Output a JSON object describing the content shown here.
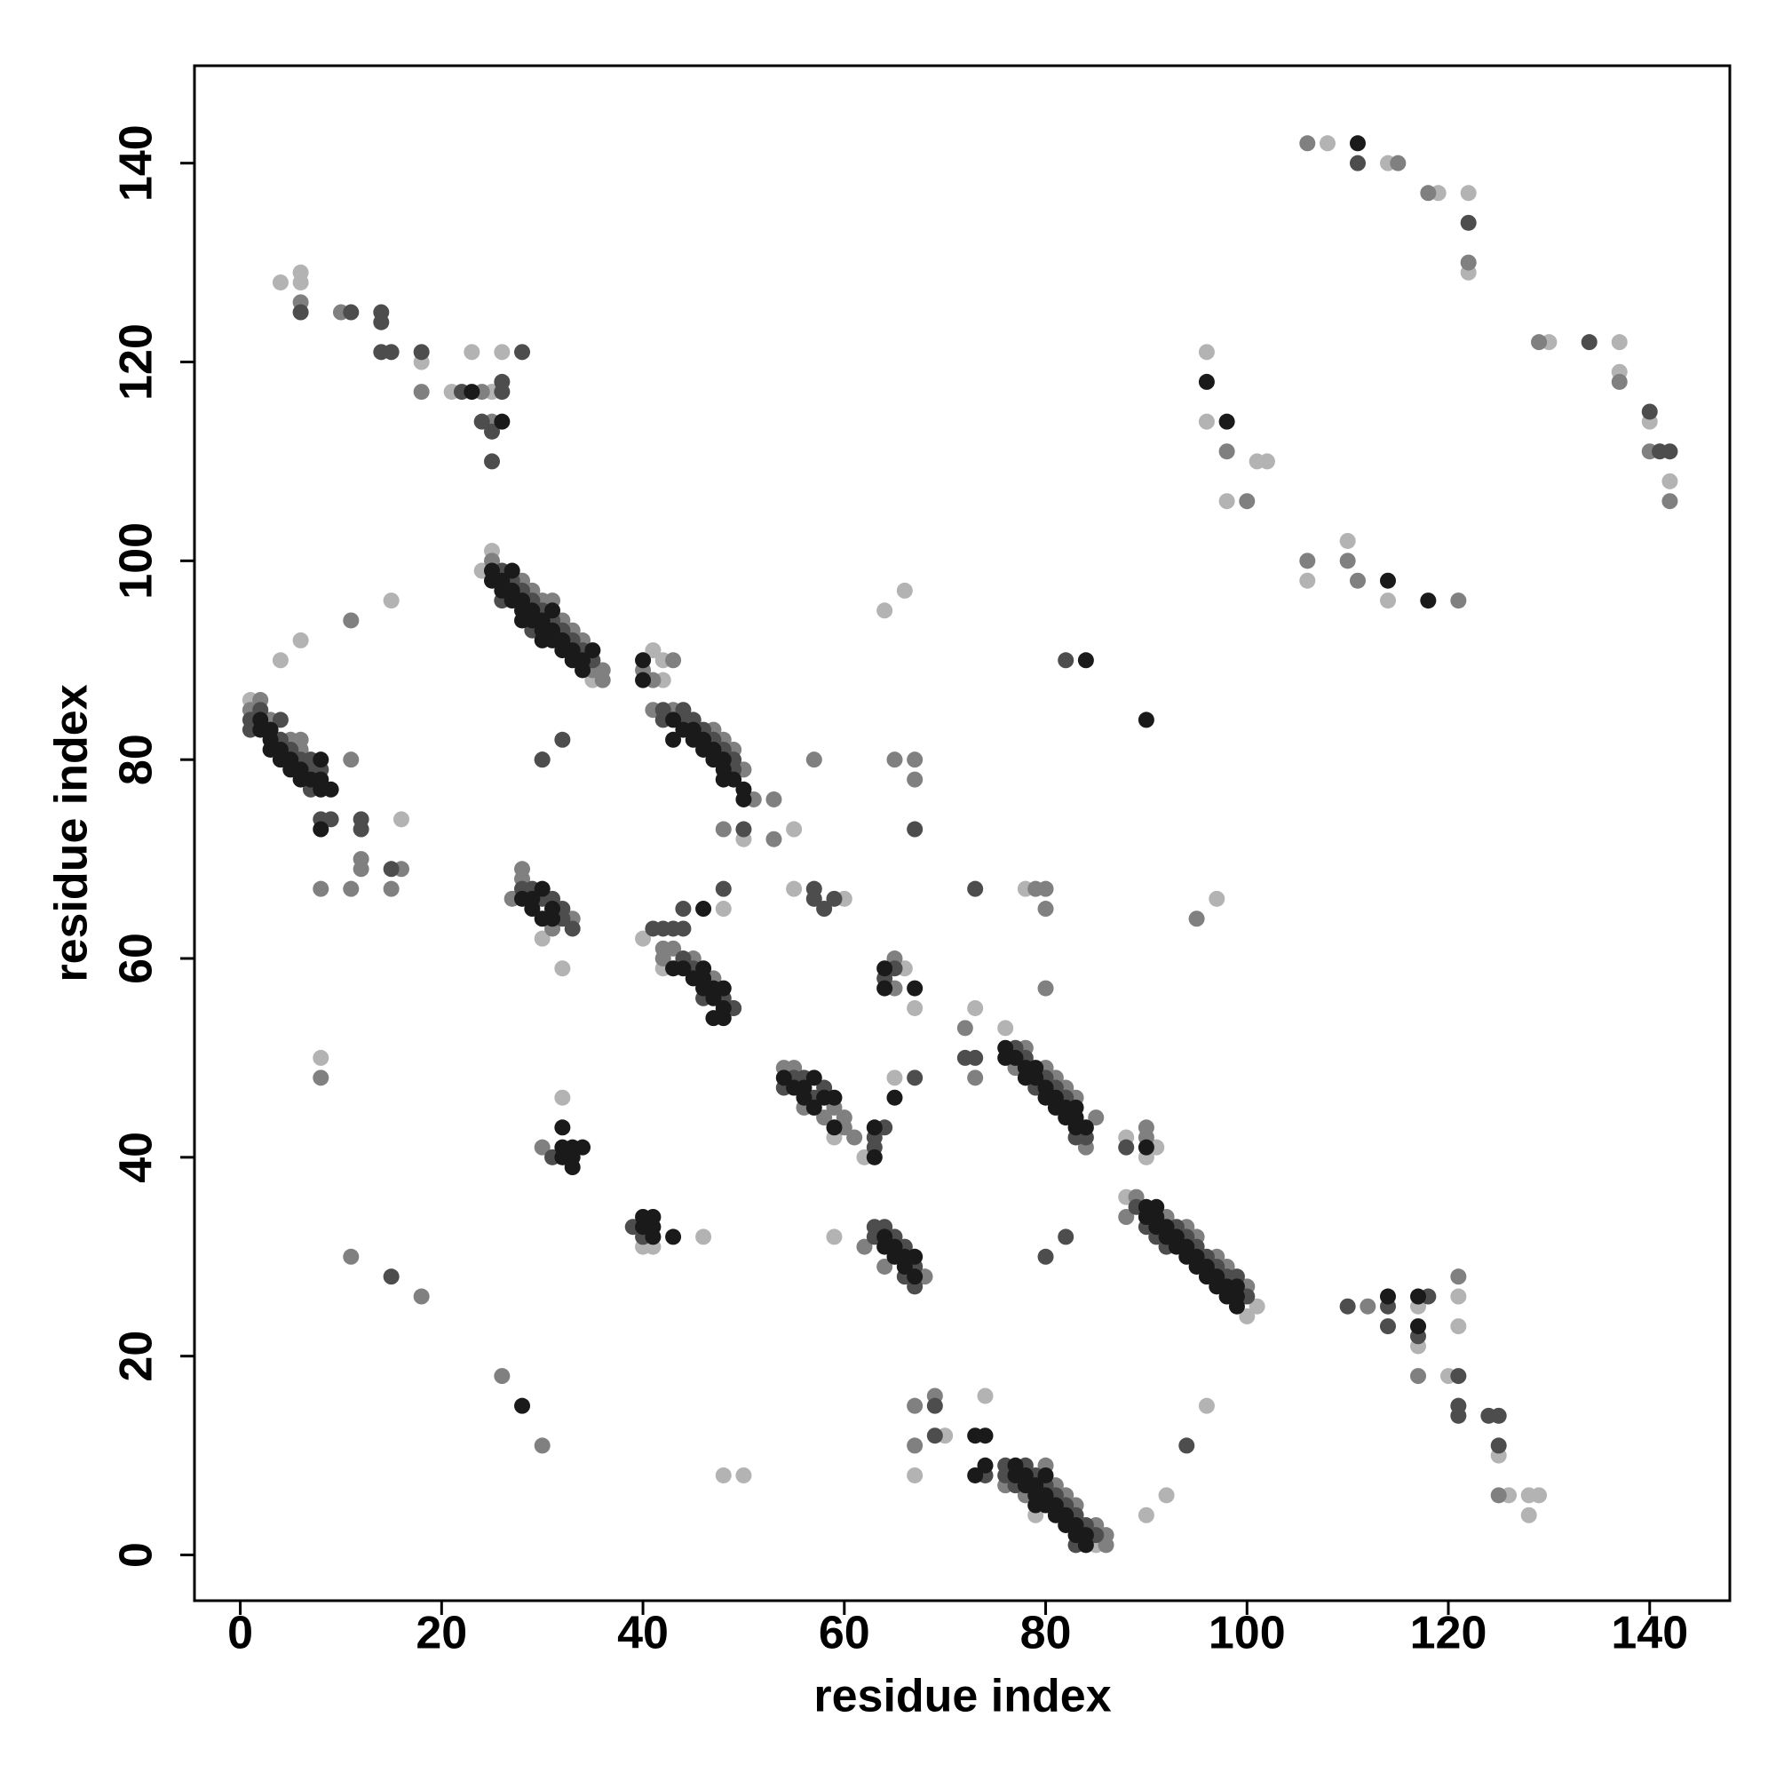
{
  "chart_data": {
    "type": "scatter",
    "xlabel": "residue index",
    "ylabel": "residue index",
    "xlim": [
      -4.55,
      147.96
    ],
    "ylim": [
      -4.6,
      149.8
    ],
    "xticks": [
      0,
      20,
      40,
      60,
      80,
      100,
      120,
      140
    ],
    "yticks": [
      0,
      20,
      40,
      60,
      80,
      100,
      120,
      140
    ],
    "series": [
      {
        "color": "#b3b3b3",
        "x": [
          1,
          4,
          6,
          4,
          8,
          16,
          15,
          4,
          6,
          6,
          18,
          21,
          23,
          25,
          26,
          25,
          24,
          35,
          40,
          41,
          42,
          42,
          40,
          42,
          48,
          55,
          55,
          60,
          50,
          46,
          59,
          48,
          50,
          32,
          32,
          30,
          41,
          40,
          59,
          62,
          65,
          66,
          67,
          66,
          64,
          67,
          70,
          74,
          73,
          76,
          78,
          90,
          91,
          88,
          88,
          100,
          101,
          90,
          92,
          96,
          97,
          85,
          79,
          96,
          96,
          98,
          101,
          102,
          106,
          110,
          108,
          114,
          114,
          119,
          122,
          122,
          130,
          137,
          137,
          140,
          142,
          117,
          117,
          120,
          121,
          121,
          125,
          126,
          128,
          129,
          128
        ],
        "values": [
          86,
          90,
          92,
          80,
          50,
          74,
          96,
          128,
          128,
          129,
          120,
          117,
          121,
          117,
          121,
          101,
          99,
          88,
          90,
          91,
          90,
          88,
          62,
          59,
          65,
          73,
          67,
          66,
          72,
          32,
          32,
          8,
          8,
          59,
          46,
          62,
          31,
          31,
          42,
          40,
          48,
          59,
          55,
          97,
          95,
          8,
          12,
          16,
          55,
          53,
          67,
          40,
          41,
          42,
          36,
          24,
          25,
          4,
          6,
          15,
          66,
          1,
          4,
          121,
          114,
          106,
          110,
          110,
          98,
          102,
          142,
          140,
          96,
          137,
          137,
          129,
          122,
          122,
          119,
          114,
          108,
          25,
          21,
          18,
          26,
          23,
          10,
          6,
          6,
          6,
          4
        ]
      },
      {
        "color": "#808080",
        "x": [
          2,
          1,
          3,
          5,
          6,
          6,
          11,
          8,
          11,
          12,
          12,
          15,
          16,
          8,
          11,
          25,
          28,
          29,
          30,
          31,
          32,
          33,
          34,
          35,
          36,
          36,
          30,
          40,
          41,
          43,
          41,
          43,
          47,
          48,
          49,
          50,
          51,
          53,
          48,
          57,
          65,
          67,
          67,
          53,
          27,
          28,
          28,
          31,
          33,
          30,
          42,
          42,
          43,
          45,
          47,
          49,
          54,
          55,
          56,
          58,
          59,
          60,
          60,
          61,
          65,
          65,
          64,
          68,
          62,
          78,
          77,
          80,
          81,
          82,
          83,
          85,
          84,
          79,
          80,
          80,
          80,
          73,
          72,
          88,
          90,
          90,
          92,
          94,
          95,
          97,
          98,
          100,
          89,
          76,
          78,
          80,
          81,
          82,
          83,
          85,
          86,
          86,
          67,
          67,
          69,
          6,
          10,
          18,
          24,
          25,
          98,
          100,
          106,
          111,
          110,
          121,
          106,
          115,
          118,
          122,
          129,
          137,
          140,
          142,
          121,
          117,
          112,
          125,
          26,
          18,
          30,
          11,
          95
        ],
        "values": [
          86,
          85,
          84,
          82,
          81,
          82,
          80,
          67,
          67,
          69,
          70,
          67,
          69,
          48,
          94,
          100,
          98,
          97,
          96,
          96,
          94,
          93,
          92,
          89,
          89,
          88,
          80,
          89,
          88,
          90,
          85,
          85,
          83,
          82,
          81,
          79,
          76,
          72,
          73,
          80,
          80,
          80,
          78,
          76,
          66,
          69,
          68,
          63,
          64,
          41,
          61,
          60,
          61,
          60,
          58,
          55,
          49,
          49,
          45,
          44,
          45,
          44,
          43,
          42,
          60,
          57,
          29,
          28,
          31,
          51,
          49,
          49,
          48,
          47,
          46,
          44,
          41,
          67,
          67,
          65,
          57,
          48,
          53,
          34,
          42,
          43,
          34,
          33,
          32,
          30,
          29,
          27,
          36,
          7,
          6,
          9,
          7,
          6,
          5,
          3,
          2,
          1,
          15,
          11,
          16,
          126,
          125,
          117,
          117,
          114,
          111,
          106,
          100,
          98,
          100,
          96,
          142,
          140,
          137,
          130,
          122,
          118,
          111,
          106,
          28,
          18,
          25,
          6,
          18,
          26,
          11,
          30,
          64
        ]
      },
      {
        "color": "#4d4d4d",
        "x": [
          1,
          1,
          2,
          4,
          4,
          5,
          6,
          7,
          7,
          8,
          7,
          8,
          9,
          12,
          12,
          15,
          26,
          26,
          27,
          28,
          29,
          29,
          30,
          31,
          32,
          33,
          34,
          35,
          32,
          30,
          42,
          42,
          44,
          44,
          45,
          46,
          47,
          48,
          49,
          49,
          50,
          48,
          44,
          28,
          29,
          30,
          31,
          32,
          32,
          33,
          31,
          41,
          42,
          43,
          44,
          39,
          40,
          44,
          45,
          46,
          48,
          49,
          54,
          55,
          56,
          57,
          58,
          57,
          57,
          58,
          59,
          63,
          63,
          64,
          64,
          65,
          67,
          67,
          73,
          72,
          63,
          63,
          64,
          65,
          66,
          66,
          67,
          67,
          77,
          78,
          79,
          80,
          81,
          82,
          84,
          83,
          88,
          89,
          90,
          91,
          92,
          93,
          94,
          95,
          96,
          97,
          98,
          99,
          100,
          76,
          76,
          77,
          78,
          79,
          80,
          81,
          82,
          83,
          84,
          85,
          83,
          73,
          80,
          82,
          82,
          14,
          14,
          11,
          14,
          15,
          18,
          22,
          24,
          25,
          25,
          26,
          26,
          28,
          6,
          110,
          114,
          114,
          121,
          121,
          121,
          124,
          125,
          125,
          117,
          118,
          111,
          122,
          134,
          141,
          142,
          140,
          15,
          69,
          69,
          74,
          94
        ],
        "values": [
          84,
          83,
          85,
          84,
          82,
          81,
          80,
          80,
          79,
          79,
          77,
          74,
          74,
          74,
          73,
          69,
          99,
          96,
          98,
          97,
          96,
          93,
          95,
          94,
          93,
          92,
          91,
          90,
          82,
          80,
          85,
          84,
          85,
          84,
          84,
          83,
          82,
          81,
          80,
          79,
          73,
          67,
          65,
          67,
          67,
          66,
          66,
          65,
          64,
          63,
          40,
          63,
          63,
          63,
          63,
          33,
          32,
          60,
          59,
          56,
          56,
          55,
          47,
          48,
          48,
          46,
          47,
          67,
          66,
          65,
          66,
          42,
          41,
          43,
          58,
          59,
          73,
          48,
          50,
          50,
          33,
          32,
          33,
          32,
          31,
          28,
          29,
          27,
          51,
          50,
          47,
          48,
          47,
          46,
          42,
          42,
          41,
          35,
          33,
          32,
          31,
          33,
          32,
          31,
          30,
          29,
          28,
          28,
          26,
          9,
          8,
          7,
          9,
          8,
          7,
          6,
          5,
          4,
          3,
          2,
          1,
          67,
          30,
          32,
          90,
          125,
          124,
          125,
          121,
          121,
          121,
          117,
          114,
          113,
          110,
          117,
          118,
          121,
          125,
          25,
          25,
          23,
          18,
          15,
          14,
          14,
          14,
          11,
          22,
          26,
          140,
          134,
          122,
          111,
          111,
          115,
          28,
          15,
          12,
          8,
          11
        ]
      },
      {
        "color": "#1a1a1a",
        "x": [
          2,
          2,
          3,
          3,
          3,
          4,
          4,
          5,
          5,
          6,
          6,
          7,
          8,
          8,
          9,
          8,
          8,
          25,
          25,
          26,
          27,
          26,
          27,
          27,
          28,
          28,
          29,
          28,
          29,
          30,
          31,
          30,
          31,
          30,
          31,
          32,
          32,
          33,
          33,
          34,
          35,
          34,
          43,
          44,
          43,
          45,
          45,
          46,
          46,
          47,
          47,
          48,
          48,
          48,
          49,
          50,
          50,
          40,
          40,
          28,
          29,
          29,
          30,
          30,
          31,
          31,
          32,
          32,
          33,
          34,
          33,
          32,
          33,
          40,
          41,
          40,
          41,
          41,
          43,
          46,
          43,
          44,
          45,
          46,
          46,
          46,
          47,
          47,
          48,
          48,
          47,
          48,
          54,
          55,
          56,
          56,
          57,
          57,
          58,
          59,
          59,
          64,
          64,
          65,
          63,
          63,
          67,
          64,
          64,
          65,
          65,
          66,
          66,
          67,
          67,
          76,
          76,
          77,
          78,
          78,
          79,
          79,
          80,
          80,
          81,
          81,
          82,
          82,
          83,
          83,
          83,
          84,
          90,
          90,
          91,
          90,
          91,
          91,
          92,
          92,
          93,
          93,
          94,
          94,
          95,
          95,
          96,
          96,
          97,
          97,
          98,
          98,
          99,
          99,
          99,
          77,
          77,
          78,
          78,
          79,
          79,
          79,
          80,
          80,
          80,
          81,
          81,
          82,
          82,
          83,
          83,
          84,
          84,
          73,
          74,
          73,
          74,
          28,
          23,
          26,
          96,
          98,
          90,
          84,
          118,
          114,
          111,
          117,
          117,
          114
        ],
        "values": [
          84,
          83,
          83,
          82,
          81,
          81,
          80,
          80,
          79,
          79,
          78,
          78,
          78,
          77,
          77,
          80,
          73,
          99,
          98,
          98,
          99,
          97,
          97,
          96,
          96,
          95,
          95,
          94,
          94,
          94,
          95,
          93,
          93,
          92,
          92,
          92,
          91,
          91,
          90,
          90,
          91,
          89,
          84,
          83,
          82,
          83,
          82,
          82,
          81,
          81,
          80,
          80,
          79,
          78,
          78,
          77,
          76,
          90,
          88,
          66,
          66,
          65,
          67,
          64,
          65,
          64,
          43,
          41,
          41,
          41,
          40,
          40,
          39,
          34,
          34,
          33,
          33,
          32,
          32,
          65,
          59,
          59,
          58,
          59,
          58,
          57,
          57,
          56,
          57,
          55,
          54,
          54,
          48,
          47,
          47,
          46,
          48,
          45,
          46,
          46,
          43,
          59,
          57,
          46,
          43,
          40,
          57,
          32,
          31,
          31,
          30,
          29,
          30,
          30,
          28,
          51,
          50,
          50,
          49,
          48,
          49,
          48,
          47,
          46,
          46,
          45,
          45,
          44,
          45,
          44,
          43,
          43,
          41,
          35,
          35,
          34,
          34,
          33,
          33,
          32,
          32,
          31,
          31,
          30,
          30,
          29,
          29,
          28,
          28,
          27,
          27,
          26,
          27,
          26,
          25,
          9,
          8,
          7,
          8,
          7,
          6,
          5,
          5,
          6,
          8,
          5,
          4,
          4,
          3,
          3,
          2,
          2,
          1,
          12,
          12,
          8,
          9,
          15,
          117,
          114,
          118,
          114,
          84,
          90,
          96,
          98,
          142,
          26,
          23,
          26
        ]
      }
    ]
  }
}
